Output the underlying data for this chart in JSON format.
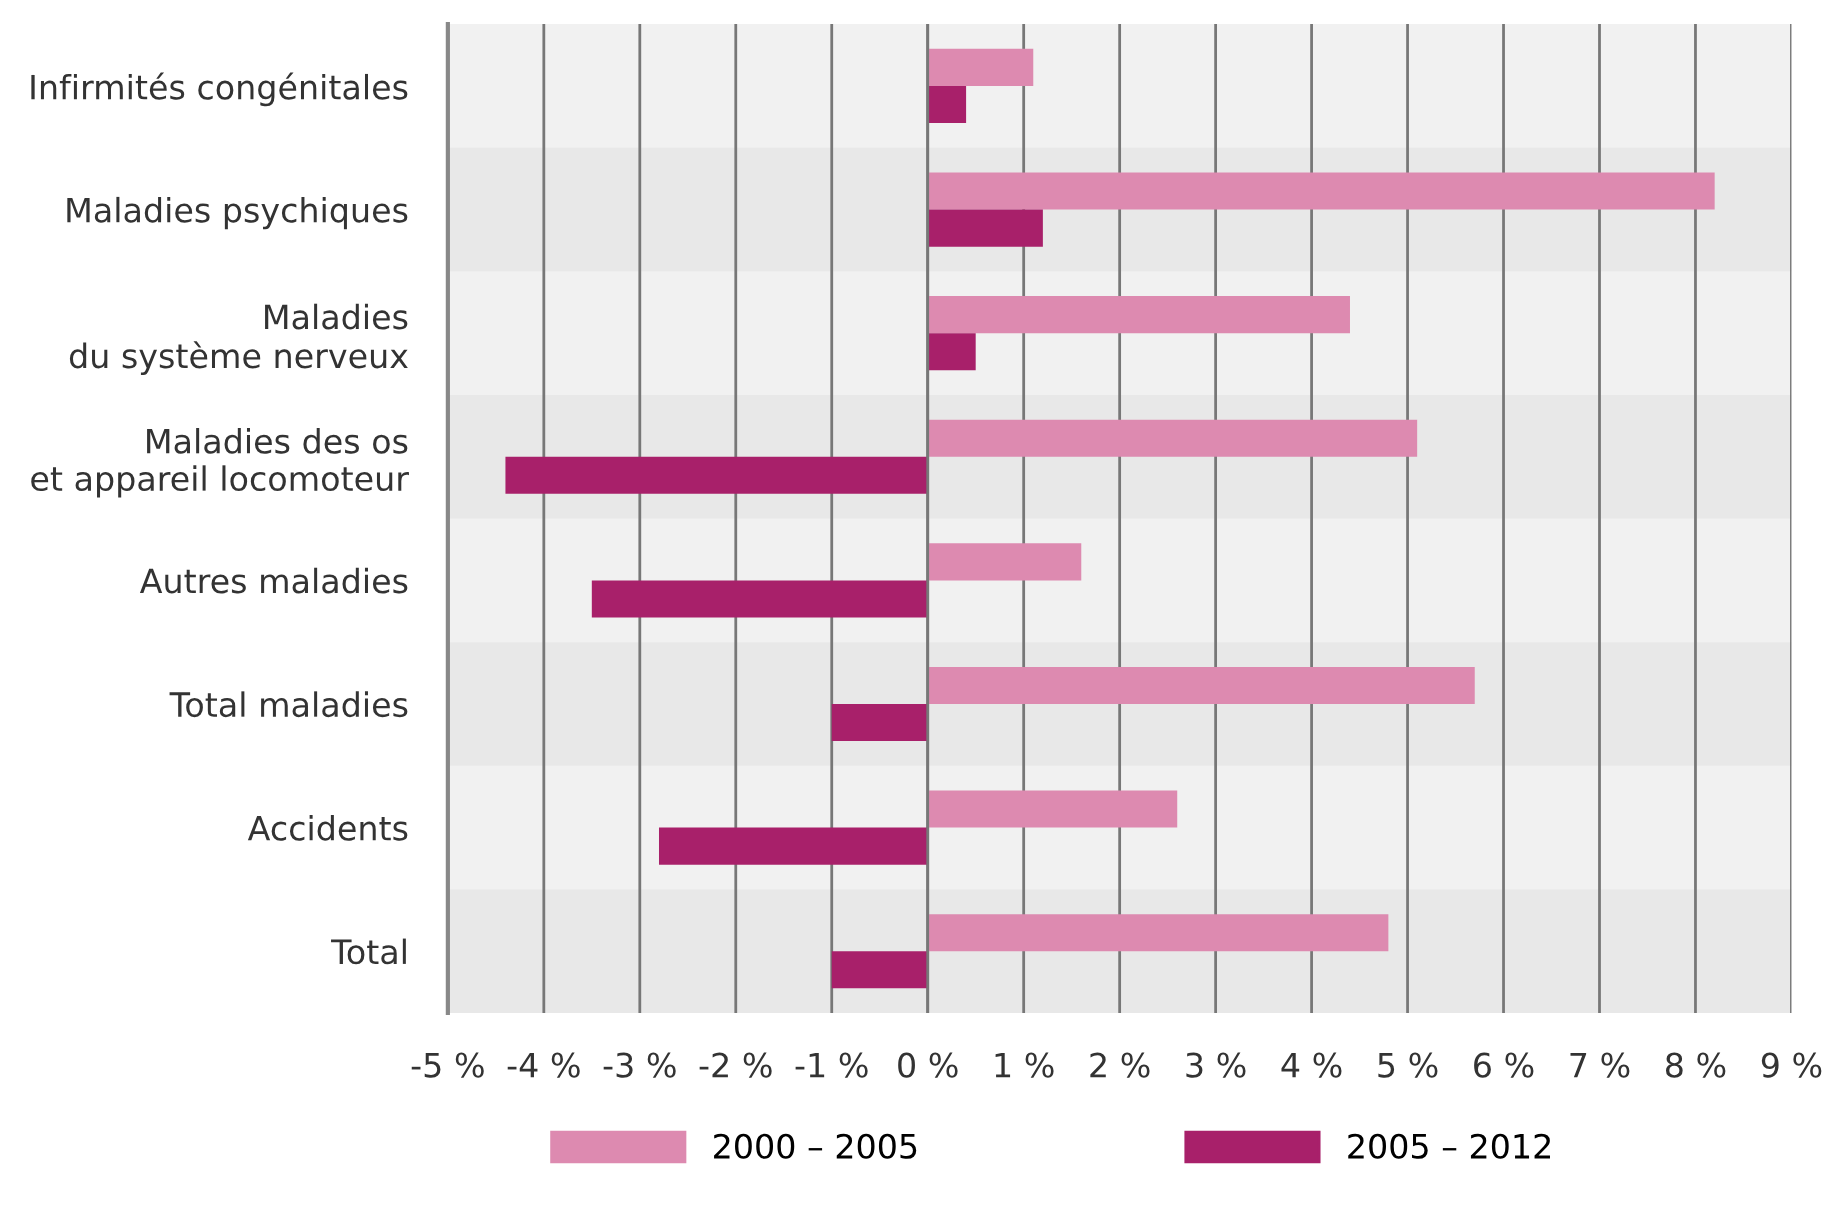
{
  "chart_data": {
    "type": "bar",
    "orientation": "horizontal",
    "categories": [
      "Infirmités congénitales",
      "Maladies psychiques",
      "Maladies\ndu système nerveux",
      "Maladies des os\net appareil locomoteur",
      "Autres maladies",
      "Total maladies",
      "Accidents",
      "Total"
    ],
    "series": [
      {
        "name": "2000 – 2005",
        "color": "#dd8ab0",
        "values": [
          1.1,
          8.2,
          4.4,
          5.1,
          1.6,
          5.7,
          2.6,
          4.8
        ]
      },
      {
        "name": "2005 – 2012",
        "color": "#a8206a",
        "values": [
          0.4,
          1.2,
          0.5,
          -4.4,
          -3.5,
          -1.0,
          -2.8,
          -1.0
        ]
      }
    ],
    "xlim": [
      -5,
      9
    ],
    "xticks": [
      {
        "value": -5,
        "label": "-5 %"
      },
      {
        "value": -4,
        "label": "-4 %"
      },
      {
        "value": -3,
        "label": "-3 %"
      },
      {
        "value": -2,
        "label": "-2 %"
      },
      {
        "value": -1,
        "label": "-1 %"
      },
      {
        "value": 0,
        "label": "0 %"
      },
      {
        "value": 1,
        "label": "1 %"
      },
      {
        "value": 2,
        "label": "2 %"
      },
      {
        "value": 3,
        "label": "3 %"
      },
      {
        "value": 4,
        "label": "4 %"
      },
      {
        "value": 5,
        "label": "5 %"
      },
      {
        "value": 6,
        "label": "6 %"
      },
      {
        "value": 7,
        "label": "7 %"
      },
      {
        "value": 8,
        "label": "8 %"
      },
      {
        "value": 9,
        "label": "9 %"
      }
    ],
    "grid": "x",
    "legend": "bottom"
  }
}
